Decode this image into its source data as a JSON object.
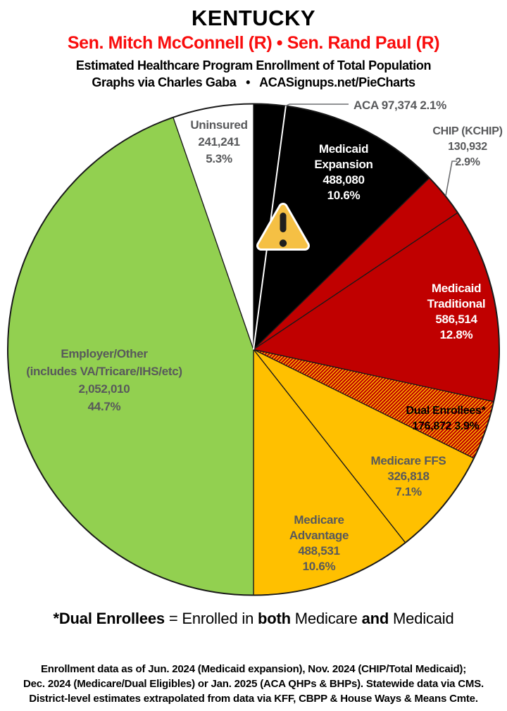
{
  "header": {
    "state": "KENTUCKY",
    "senators": "Sen. Mitch McConnell (R) • Sen. Rand Paul (R)",
    "subtitle": "Estimated Healthcare Program Enrollment of Total Population",
    "credit": "Graphs via Charles Gaba   •   ACASignups.net/PieCharts"
  },
  "chart_data": {
    "type": "pie",
    "title": "KENTUCKY",
    "subtitle": "Estimated Healthcare Program Enrollment of Total Population",
    "direction": "clockwise",
    "start_angle_deg": 0,
    "slices": {
      "aca": {
        "name": "ACA",
        "enrollment": "97,374",
        "value": 97374,
        "pct": "2.1%",
        "pct_num": 2.1,
        "color": "#000000"
      },
      "medicaid_expansion": {
        "name": "Medicaid Expansion",
        "enrollment": "488,080",
        "value": 488080,
        "pct": "10.6%",
        "pct_num": 10.6,
        "color": "#000000"
      },
      "chip": {
        "name": "CHIP (KCHIP)",
        "enrollment": "130,932",
        "value": 130932,
        "pct": "2.9%",
        "pct_num": 2.9,
        "color": "#C00000"
      },
      "medicaid_traditional": {
        "name": "Medicaid Traditional",
        "enrollment": "586,514",
        "value": 586514,
        "pct": "12.8%",
        "pct_num": 12.8,
        "color": "#C00000"
      },
      "dual_enrollees": {
        "name": "Dual Enrollees*",
        "enrollment": "176,872",
        "value": 176872,
        "pct": "3.9%",
        "pct_num": 3.9,
        "color": "hatch"
      },
      "medicare_ffs": {
        "name": "Medicare FFS",
        "enrollment": "326,818",
        "value": 326818,
        "pct": "7.1%",
        "pct_num": 7.1,
        "color": "#FFC000"
      },
      "medicare_advantage": {
        "name": "Medicare Advantage",
        "enrollment": "488,531",
        "value": 488531,
        "pct": "10.6%",
        "pct_num": 10.6,
        "color": "#FFC000"
      },
      "employer_other": {
        "name": "Employer/Other",
        "detail": "(includes VA/Tricare/IHS/etc)",
        "enrollment": "2,052,010",
        "value": 2052010,
        "pct": "44.7%",
        "pct_num": 44.7,
        "color": "#92D050"
      },
      "uninsured": {
        "name": "Uninsured",
        "enrollment": "241,241",
        "value": 241241,
        "pct": "5.3%",
        "pct_num": 5.3,
        "color": "#FFFFFF"
      }
    },
    "hatch_colors": {
      "base": "#FFC000",
      "stripe": "#C00000"
    }
  },
  "footnote": {
    "lead": "*Dual Enrollees",
    "mid1": " = Enrolled in ",
    "bold1": "both",
    "mid2": " Medicare ",
    "bold2": "and",
    "mid3": " Medicaid"
  },
  "source": {
    "line1": "Enrollment data as of Jun. 2024 (Medicaid expansion), Nov. 2024 (CHIP/Total Medicaid);",
    "line2": "Dec. 2024 (Medicare/Dual Eligibles) or Jan. 2025 (ACA QHPs & BHPs). Statewide data via CMS.",
    "line3": "District-level estimates extrapolated from data via KFF, CBPP & House Ways & Means Cmte."
  }
}
